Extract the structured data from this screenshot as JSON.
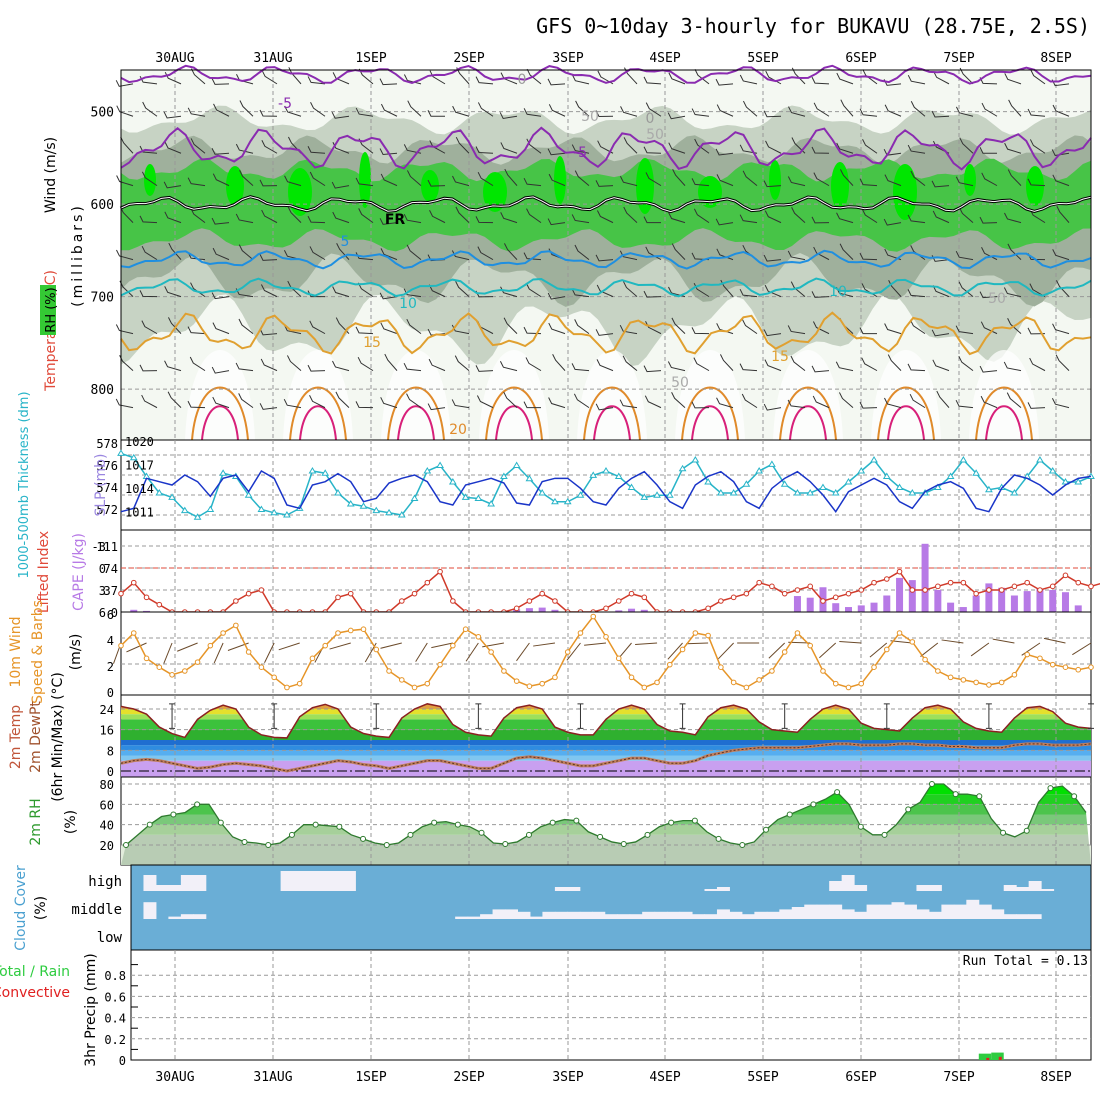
{
  "title": "GFS 0~10day 3-hourly for BUKAVU (28.75E, 2.5S)",
  "run_total": "Run Total = 0.13",
  "date_labels": [
    "30AUG",
    "31AUG",
    "1SEP",
    "2SEP",
    "3SEP",
    "4SEP",
    "5SEP",
    "6SEP",
    "7SEP",
    "8SEP"
  ],
  "colors": {
    "rh_light": "#e8f2e4",
    "rh_mid": "#c7d3c4",
    "rh_dark": "#9fb09c",
    "rh_green": "#47c447",
    "rh_bright": "#00e600",
    "cape": "#b77ae6",
    "temp_warm": "#e5e02c",
    "temp_green": "#3cc23c",
    "cool_blue": "#2f8ce0",
    "cloud": "#6aaed6",
    "precip_green": "#2ecc40",
    "precip_red": "#e02020"
  },
  "labels": {
    "upper_rh": "RH (%)",
    "upper_temp": "Temperature (°C)",
    "upper_wind": "Wind (m/s)",
    "upper_units": "(millibars)",
    "thick": "1000-500mb Thickness (dm)",
    "slp": "SLP (mb)",
    "li": "Lifted Index",
    "cape": "CAPE (J/kg)",
    "wind10": "10m Wind",
    "wind10b": "Speed & Barbs",
    "wind10c": "(m/s)",
    "temp2a": "2m Temp",
    "temp2b": "2m DewPt",
    "temp2c": "(6hr Min/Max) (°C)",
    "rh2": "2m RH",
    "rh2u": "(%)",
    "cloud": "Cloud Cover",
    "cloudu": "(%)",
    "cloud_high": "high",
    "cloud_middle": "middle",
    "cloud_low": "low",
    "precip_a": "Total / Rain",
    "precip_b": "Convective",
    "precip_c": "3hr Precip (mm)"
  },
  "chart_data": [
    {
      "panel": "upper_air",
      "type": "heatmap",
      "y_ticks": [
        500,
        600,
        700,
        800
      ],
      "contour_labels": [
        "-5",
        "-5",
        "0",
        "0",
        "FR",
        "5",
        "10",
        "10",
        "15",
        "15",
        "20",
        "50",
        "50",
        "50",
        "50"
      ],
      "temp_levels": {
        "minus5": 540,
        "freezing": 600,
        "plus5": 660,
        "plus10": 690,
        "plus15": 740
      }
    },
    {
      "panel": "slp_thickness",
      "type": "line",
      "left_ticks": [
        "578",
        "576",
        "574",
        "572"
      ],
      "right_ticks": [
        "1020",
        "1017",
        "1014",
        "1011"
      ],
      "series": [
        {
          "name": "SLP (mb)",
          "color": "#1a35c8",
          "values": [
            1011.5,
            1012,
            1016.5,
            1016,
            1015.5,
            1017,
            1016,
            1013.8,
            1016.5,
            1017,
            1014.5,
            1017.6,
            1016.5,
            1012.5,
            1012,
            1015.5,
            1016,
            1017.2,
            1016,
            1013,
            1013.5,
            1015.8,
            1016.5,
            1017,
            1016,
            1013,
            1012.5,
            1015.5,
            1016,
            1016.5,
            1015.8,
            1012.8,
            1012.5,
            1016,
            1016.5,
            1016.5,
            1015,
            1013,
            1012.5,
            1015,
            1016.5,
            1017.5,
            1015.5,
            1013,
            1012,
            1015.5,
            1016.8,
            1017.5,
            1016,
            1013,
            1012,
            1015,
            1016.5,
            1017.5,
            1016,
            1014,
            1011.5,
            1014.5,
            1015.5,
            1016.5,
            1015.5,
            1013,
            1012,
            1014.5,
            1015.5,
            1016,
            1015,
            1012,
            1011.5,
            1015,
            1017,
            1016.5,
            1015.5,
            1014,
            1015.5,
            1016.5,
            1016.8
          ]
        },
        {
          "name": "1000-500mb Thickness (dm)",
          "color": "#28b4c8",
          "values": [
            577.6,
            577.2,
            575.5,
            574,
            573.6,
            572.4,
            571.8,
            572.5,
            575.8,
            575.5,
            573.8,
            572.5,
            572.2,
            572,
            572.6,
            576,
            575.8,
            574,
            573,
            572.8,
            572.4,
            572.2,
            572,
            573.5,
            576,
            576.5,
            575,
            573.6,
            573.5,
            573,
            575.5,
            576.5,
            575.3,
            574,
            573.2,
            573.2,
            573.8,
            575.6,
            576,
            575.5,
            574.5,
            573.6,
            573.8,
            573.8,
            576.2,
            577,
            575,
            574,
            574,
            574.8,
            576,
            576.6,
            574.8,
            574,
            574,
            574.5,
            574,
            575,
            576,
            577,
            575.5,
            574.5,
            574,
            574,
            574.5,
            575.5,
            577,
            575.8,
            574.3,
            574.5,
            574,
            575.5,
            577,
            576,
            575,
            575,
            575.5
          ]
        }
      ]
    },
    {
      "panel": "lifted_index_cape",
      "type": "bar",
      "left_ticks": [
        "-3",
        "0",
        "3",
        "6"
      ],
      "right_ticks": [
        "111",
        "74",
        "37",
        "0"
      ],
      "cape_values": [
        0,
        4,
        2,
        0,
        0,
        0,
        0,
        0,
        0,
        0,
        0,
        0,
        0,
        0,
        0,
        0,
        0,
        0,
        0,
        0,
        0,
        0,
        0,
        0,
        0,
        0,
        0,
        0,
        0,
        0,
        0,
        5,
        7,
        8,
        4,
        0,
        0,
        0,
        0,
        3,
        6,
        4,
        0,
        0,
        0,
        0,
        0,
        0,
        0,
        0,
        0,
        0,
        0,
        29,
        26,
        45,
        16,
        9,
        12,
        17,
        30,
        62,
        58,
        124,
        40,
        17,
        9,
        30,
        52,
        44,
        30,
        38,
        42,
        40,
        36,
        12,
        0,
        0
      ],
      "lifted_index": [
        3.5,
        2,
        4,
        5,
        6,
        6,
        6,
        6,
        6,
        4.5,
        3.5,
        3,
        6,
        6,
        6,
        6,
        6,
        4,
        3.5,
        6,
        6,
        6,
        4.5,
        3.5,
        2,
        0.5,
        4.5,
        6,
        6,
        6,
        6,
        5.5,
        4.5,
        3.5,
        4.5,
        6,
        6,
        6,
        5.5,
        4.5,
        3.5,
        4,
        6,
        6,
        6,
        6,
        5.5,
        4.5,
        4,
        3.5,
        2,
        2.5,
        3.5,
        3,
        2.5,
        4.5,
        4,
        3.5,
        3,
        2,
        1.5,
        0.5,
        3,
        3,
        2.5,
        2,
        2,
        3.5,
        3,
        3,
        2.5,
        2,
        3,
        2.5,
        1,
        2,
        2.5,
        2,
        0.5
      ]
    },
    {
      "panel": "wind_10m",
      "type": "line",
      "y_ticks": [
        6,
        4,
        2,
        0
      ],
      "series": [
        {
          "name": "10m Wind Speed",
          "color": "#e69528",
          "values": [
            3.5,
            4.5,
            2.5,
            1.8,
            1.2,
            1.5,
            2.2,
            3.5,
            4.5,
            5.1,
            3,
            1.8,
            1,
            0.2,
            0.5,
            2.5,
            3.5,
            4.5,
            4.7,
            4.8,
            3.2,
            1.5,
            0.8,
            0.2,
            0.5,
            2,
            3.5,
            4.8,
            4.2,
            3,
            1.5,
            0.7,
            0.3,
            0.5,
            1,
            3,
            4.5,
            5.8,
            4.2,
            2.5,
            1,
            0.2,
            0.6,
            2,
            3.2,
            4.5,
            4.3,
            1.8,
            0.6,
            0.2,
            0.8,
            1.5,
            3,
            4.5,
            3.5,
            1.5,
            0.5,
            0.2,
            0.5,
            1.8,
            3.2,
            4.5,
            3.8,
            2.4,
            1.5,
            1,
            0.8,
            0.6,
            0.4,
            0.6,
            1.2,
            2.8,
            2.5,
            2,
            1.8,
            1.6,
            1.8
          ]
        }
      ]
    },
    {
      "panel": "temp_2m",
      "type": "area",
      "y_ticks": [
        24,
        16,
        8,
        0
      ],
      "series": [
        {
          "name": "2m Temp",
          "color": "#8b2020",
          "values": [
            25,
            24,
            22,
            17,
            14.5,
            13,
            20,
            23.5,
            25.5,
            24,
            17,
            14,
            13,
            12.8,
            21,
            24.5,
            25.8,
            24,
            17,
            14.5,
            13.5,
            13,
            20.5,
            24,
            26,
            25,
            18,
            15,
            14,
            13.5,
            20.5,
            24.5,
            25.5,
            24,
            17,
            15,
            14,
            14,
            20,
            24,
            25.5,
            24,
            18,
            15.5,
            15,
            14,
            21,
            24.5,
            25.5,
            24,
            19,
            16,
            15.5,
            15,
            20,
            24,
            25.5,
            24,
            18.5,
            16.5,
            16,
            15.5,
            20.5,
            24.5,
            25.5,
            24,
            19,
            16.5,
            15.5,
            15,
            20.5,
            24.5,
            25,
            23,
            18.5,
            17,
            16.5
          ]
        },
        {
          "name": "2m DewPt",
          "color": "#8b5a2b",
          "values": [
            3,
            4,
            4.5,
            4,
            3,
            2,
            1,
            1.5,
            2.5,
            3,
            2.5,
            2,
            1,
            0,
            1,
            2,
            3,
            4,
            3.5,
            2.5,
            2,
            1,
            2,
            3,
            4,
            4,
            3,
            2,
            1,
            1,
            3,
            5,
            5.5,
            5,
            4,
            3,
            2,
            2,
            3,
            4,
            5,
            5,
            4,
            3,
            3,
            4,
            6,
            7,
            8,
            8.5,
            9,
            9,
            9,
            9,
            9.5,
            10,
            10.5,
            10.5,
            10,
            10,
            10,
            10.5,
            10.5,
            10,
            10,
            9.5,
            9.5,
            9,
            9,
            9,
            10,
            10.5,
            10.5,
            10,
            10,
            10,
            10.5
          ]
        }
      ]
    },
    {
      "panel": "rh_2m",
      "type": "area",
      "y_ticks": [
        80,
        60,
        40,
        20
      ],
      "series": [
        {
          "name": "2m RH",
          "color": "#2e8b2e",
          "values": [
            20,
            30,
            40,
            48,
            50,
            52,
            60,
            60,
            42,
            28,
            23,
            22,
            20,
            22,
            30,
            40,
            40,
            39,
            38,
            30,
            26,
            22,
            20,
            22,
            30,
            38,
            42,
            43,
            40,
            38,
            32,
            22,
            21,
            23,
            30,
            38,
            42,
            45,
            44,
            33,
            28,
            23,
            21,
            23,
            30,
            38,
            42,
            44,
            44,
            33,
            26,
            22,
            20,
            23,
            35,
            45,
            50,
            55,
            60,
            65,
            72,
            60,
            38,
            30,
            30,
            40,
            55,
            62,
            80,
            80,
            70,
            70,
            68,
            46,
            32,
            28,
            34,
            62,
            76,
            78,
            68,
            52
          ]
        }
      ]
    },
    {
      "panel": "cloud_cover",
      "type": "bar",
      "series": [
        {
          "name": "high",
          "values": [
            0,
            80,
            30,
            30,
            80,
            80,
            0,
            0,
            0,
            0,
            0,
            0,
            100,
            100,
            100,
            100,
            100,
            100,
            0,
            0,
            0,
            0,
            0,
            0,
            0,
            0,
            0,
            0,
            0,
            0,
            0,
            0,
            0,
            0,
            20,
            20,
            0,
            0,
            0,
            0,
            0,
            0,
            0,
            0,
            0,
            0,
            10,
            20,
            0,
            0,
            0,
            0,
            0,
            0,
            0,
            0,
            50,
            80,
            30,
            0,
            0,
            0,
            0,
            30,
            30,
            0,
            0,
            0,
            0,
            0,
            30,
            20,
            50,
            10,
            0,
            0,
            0
          ]
        },
        {
          "name": "middle",
          "values": [
            0,
            70,
            0,
            10,
            20,
            20,
            0,
            0,
            0,
            0,
            0,
            0,
            0,
            0,
            0,
            0,
            0,
            0,
            0,
            0,
            0,
            0,
            0,
            0,
            0,
            0,
            10,
            10,
            20,
            40,
            40,
            30,
            10,
            30,
            30,
            30,
            30,
            30,
            20,
            20,
            20,
            30,
            30,
            30,
            30,
            20,
            20,
            40,
            30,
            20,
            30,
            30,
            40,
            50,
            60,
            60,
            60,
            40,
            30,
            60,
            60,
            70,
            60,
            40,
            30,
            60,
            60,
            80,
            60,
            40,
            20,
            20,
            20,
            0
          ]
        }
      ]
    },
    {
      "panel": "precip",
      "type": "bar",
      "y_ticks": [
        "0.8",
        "0.6",
        "0.4",
        "0.2",
        "0"
      ],
      "values": [
        0,
        0,
        0,
        0,
        0,
        0,
        0,
        0,
        0,
        0,
        0,
        0,
        0,
        0,
        0,
        0,
        0,
        0,
        0,
        0,
        0,
        0,
        0,
        0,
        0,
        0,
        0,
        0,
        0,
        0,
        0,
        0,
        0,
        0,
        0,
        0,
        0,
        0,
        0,
        0,
        0,
        0,
        0,
        0,
        0,
        0,
        0,
        0,
        0,
        0,
        0,
        0,
        0,
        0,
        0,
        0,
        0,
        0,
        0,
        0,
        0,
        0,
        0,
        0,
        0,
        0,
        0,
        0,
        0.06,
        0.07,
        0,
        0,
        0,
        0,
        0,
        0,
        0
      ],
      "convective": [
        0,
        0,
        0,
        0,
        0,
        0,
        0,
        0,
        0,
        0,
        0,
        0,
        0,
        0,
        0,
        0,
        0,
        0,
        0,
        0,
        0,
        0,
        0,
        0,
        0,
        0,
        0,
        0,
        0,
        0,
        0,
        0,
        0,
        0,
        0,
        0,
        0,
        0,
        0,
        0,
        0,
        0,
        0,
        0,
        0,
        0,
        0,
        0,
        0,
        0,
        0,
        0,
        0,
        0,
        0,
        0,
        0,
        0,
        0,
        0,
        0,
        0,
        0,
        0,
        0,
        0,
        0,
        0,
        0.02,
        0.03,
        0,
        0,
        0,
        0,
        0,
        0,
        0
      ]
    }
  ]
}
